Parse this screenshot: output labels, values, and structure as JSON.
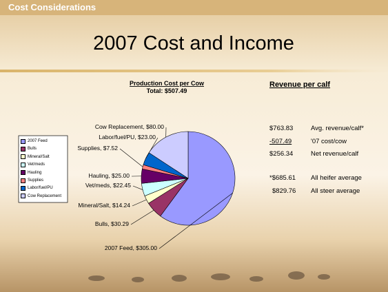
{
  "header": {
    "section": "Cost Considerations",
    "title": "2007 Cost and Income"
  },
  "chart_data": {
    "type": "pie",
    "title": "Production Cost per Cow",
    "subtitle": "Total: $507.49",
    "categories": [
      "2007 Feed",
      "Bulls",
      "Mineral/Salt",
      "Vet/meds",
      "Hauling",
      "Supplies",
      "Labor/fuel/PU",
      "Cow Replacement"
    ],
    "series": [
      {
        "name": "Production Cost per Cow",
        "values": [
          305,
          30.29,
          14.24,
          22.45,
          25,
          7.52,
          23,
          80
        ],
        "value_labels": [
          "$305.00",
          "$30.29",
          "$14.24",
          "$22.45",
          "$25.00",
          "$7.52",
          "$23.00",
          "$80.00"
        ],
        "colors": [
          "#9999ff",
          "#993366",
          "#ffffcc",
          "#ccffff",
          "#660066",
          "#ff8080",
          "#0066cc",
          "#ccccff"
        ]
      }
    ],
    "legend": "left"
  },
  "revenue": {
    "title": "Revenue per calf",
    "rows": [
      [
        "$763.83",
        "Avg. revenue/calf*"
      ],
      [
        "-507.49",
        "'07 cost/cow"
      ],
      [
        "$256.34",
        "Net revenue/calf"
      ],
      [
        "*$685.61",
        "All heifer average"
      ],
      [
        "$829.76",
        "All steer average"
      ]
    ]
  }
}
